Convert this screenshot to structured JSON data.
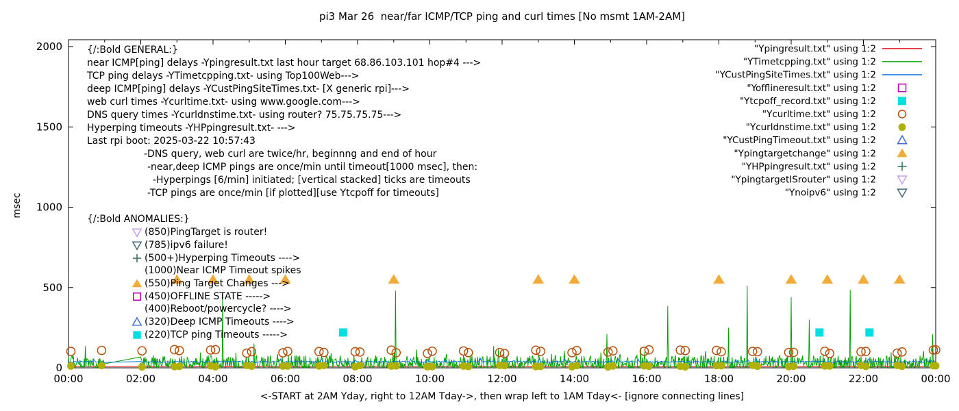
{
  "title": "pi3 Mar 26  near/far ICMP/TCP ping and curl times [No msmt 1AM-2AM]",
  "ylabel": "msec",
  "xlabel": "<-START at 2AM Yday, right to 12AM Tday->, then wrap left to 1AM Tday<- [ignore connecting lines]",
  "colors": {
    "red": "#e30000",
    "green": "#00a000",
    "blue": "#0072dd",
    "magenta": "#c000c0",
    "cyan": "#00e0e0",
    "dark_orange": "#b5500d",
    "olive": "#b0b000",
    "blue_triangle": "#3e6dd8",
    "orange_triangle": "#f3ab38",
    "dark_green": "#2d6e4f",
    "violet": "#c79fe8",
    "dark_teal": "#47697a",
    "frame": "#000000"
  },
  "legend": [
    {
      "label": "\"Ypingresult.txt\" using 1:2",
      "marker": "line",
      "color": "#e30000"
    },
    {
      "label": "\"YTimetcpping.txt\" using 1:2",
      "marker": "line",
      "color": "#00a000"
    },
    {
      "label": "\"YCustPingSiteTimes.txt\" using 1:2",
      "marker": "line",
      "color": "#0072dd"
    },
    {
      "label": "\"Yofflineresult.txt\" using 1:2",
      "marker": "square-open",
      "color": "#c000c0"
    },
    {
      "label": "\"Ytcpoff_record.txt\" using 1:2",
      "marker": "square",
      "color": "#00e0e0"
    },
    {
      "label": "\"Ycurltime.txt\" using 1:2",
      "marker": "circle-open",
      "color": "#b5500d"
    },
    {
      "label": "\"Ycurldnstime.txt\" using 1:2",
      "marker": "circle",
      "color": "#b0b000"
    },
    {
      "label": "\"YCustPingTimeout.txt\" using 1:2",
      "marker": "triangle-open",
      "color": "#3e6dd8"
    },
    {
      "label": "\"Ypingtargetchange\" using 1:2",
      "marker": "triangle",
      "color": "#f3ab38"
    },
    {
      "label": "\"YHPpingresult.txt\" using 1:2",
      "marker": "plus",
      "color": "#2d6e4f"
    },
    {
      "label": "\"YpingtargetISrouter\" using 1:2",
      "marker": "triangle-down-open",
      "color": "#c79fe8"
    },
    {
      "label": "\"Ynoipv6\" using 1:2",
      "marker": "triangle-down-open",
      "color": "#47697a"
    }
  ],
  "annotations": {
    "general": [
      {
        "text": "{/:Bold GENERAL:}",
        "indent": 0
      },
      {
        "text": "near ICMP[ping] delays -Ypingresult.txt last hour target 68.86.103.101 hop#4 --->",
        "indent": 0
      },
      {
        "text": "TCP ping delays -YTimetcpping.txt- using Top100Web--->",
        "indent": 0
      },
      {
        "text": "deep ICMP[ping] delays -YCustPingSiteTimes.txt- [X generic rpi]--->",
        "indent": 0
      },
      {
        "text": "web curl times -Ycurltime.txt- using www.google.com--->",
        "indent": 0
      },
      {
        "text": "DNS query times -Ycurldnstime.txt- using router? 75.75.75.75--->",
        "indent": 0
      },
      {
        "text": "Hyperping timeouts -YHPpingresult.txt- --->",
        "indent": 0
      },
      {
        "text": "Last rpi boot: 2025-03-22 10:57:43",
        "indent": 0
      },
      {
        "text": "-DNS query, web curl are twice/hr, beginnng and end of hour",
        "indent": 83
      },
      {
        "text": "-near,deep ICMP pings are once/min until timeout[1000 msec], then:",
        "indent": 88
      },
      {
        "text": "-Hyperpings [6/min] initiated; [vertical stacked] ticks are timeouts",
        "indent": 96
      },
      {
        "text": "-TCP pings are once/min [if plotted][use Ytcpoff for timeouts]",
        "indent": 88
      }
    ],
    "anomalies_header": "{/:Bold ANOMALIES:}",
    "anomalies": [
      {
        "marker": "triangle-down-open",
        "color": "#c79fe8",
        "text": "(850)PingTarget is router!"
      },
      {
        "marker": "triangle-down-open",
        "color": "#47697a",
        "text": "(785)ipv6 failure!"
      },
      {
        "marker": "plus",
        "color": "#2d6e4f",
        "text": "(500+)Hyperping Timeouts ---->"
      },
      {
        "marker": null,
        "color": null,
        "text": "(1000)Near ICMP Timeout spikes"
      },
      {
        "marker": "triangle",
        "color": "#f3ab38",
        "text": "(550)Ping Target Changes --->"
      },
      {
        "marker": "square-open",
        "color": "#c000c0",
        "text": "(450)OFFLINE STATE ----->"
      },
      {
        "marker": null,
        "color": null,
        "text": "(400)Reboot/powercycle? ---->"
      },
      {
        "marker": "triangle-open",
        "color": "#3e6dd8",
        "text": "(320)Deep ICMP Timeouts ---->"
      },
      {
        "marker": "square",
        "color": "#00e0e0",
        "text": "(220)TCP ping Timeouts ----->"
      }
    ]
  },
  "chart_data": {
    "type": "line",
    "title": "pi3 Mar 26  near/far ICMP/TCP ping and curl times [No msmt 1AM-2AM]",
    "xlabel": "<-START at 2AM Yday, right to 12AM Tday->, then wrap left to 1AM Tday<- [ignore connecting lines]",
    "ylabel": "msec",
    "ylim": [
      0,
      2000
    ],
    "y_ticks": [
      0,
      500,
      1000,
      1500,
      2000
    ],
    "x_tick_labels": [
      "00:00",
      "02:00",
      "04:00",
      "06:00",
      "08:00",
      "10:00",
      "12:00",
      "14:00",
      "16:00",
      "18:00",
      "20:00",
      "22:00",
      "00:00"
    ],
    "x_hours_range": [
      0,
      24
    ],
    "grid": false,
    "legend_position": "top-right-inside",
    "no_measurement_window": [
      "01:00",
      "02:00"
    ],
    "series": [
      {
        "name": "Ypingresult.txt",
        "style": "line",
        "color": "#e30000",
        "description": "near ICMP ping delay, flat ~5-10 msec all day",
        "baseline_msec": 6,
        "noise_amp": 4
      },
      {
        "name": "YTimetcpping.txt",
        "style": "line",
        "color": "#00a000",
        "description": "TCP ping delay grass 0-80 msec once/min, with timeout spikes",
        "grass_max": 78,
        "spikes": [
          [
            "00:28",
            135
          ],
          [
            "04:16",
            460
          ],
          [
            "05:08",
            150
          ],
          [
            "09:03",
            480
          ],
          [
            "11:46",
            135
          ],
          [
            "14:54",
            210
          ],
          [
            "15:50",
            125
          ],
          [
            "16:35",
            385
          ],
          [
            "18:16",
            250
          ],
          [
            "18:47",
            510
          ],
          [
            "20:00",
            440
          ],
          [
            "20:30",
            300
          ],
          [
            "21:38",
            485
          ],
          [
            "23:55",
            210
          ]
        ]
      },
      {
        "name": "YCustPingSiteTimes.txt",
        "style": "line",
        "color": "#0072dd",
        "description": "deep ICMP ping ~33-45 msec",
        "baseline_msec": 33,
        "noise_amp": 9,
        "bump_chance": 0.04,
        "bump_amp": 20
      },
      {
        "name": "Yofflineresult.txt",
        "style": "points",
        "marker": "square-open",
        "color": "#c000c0",
        "points": []
      },
      {
        "name": "Ytcpoff_record.txt",
        "style": "points",
        "marker": "square",
        "color": "#00e0e0",
        "points": [
          [
            "07:36",
            220
          ],
          [
            "20:47",
            220
          ],
          [
            "22:10",
            220
          ]
        ]
      },
      {
        "name": "Ycurltime.txt",
        "style": "points",
        "marker": "circle-open",
        "color": "#b5500d",
        "description": "web curl times twice/hr",
        "value_msec_range": [
          88,
          114
        ],
        "times": [
          "00:04",
          "00:55",
          "02:02",
          "02:56",
          "03:04",
          "03:56",
          "04:04",
          "04:56",
          "05:04",
          "05:56",
          "06:04",
          "06:56",
          "07:04",
          "07:56",
          "08:04",
          "08:56",
          "09:04",
          "09:56",
          "10:04",
          "10:56",
          "11:04",
          "11:56",
          "12:04",
          "12:56",
          "13:04",
          "13:56",
          "14:04",
          "14:56",
          "15:04",
          "15:56",
          "16:04",
          "16:56",
          "17:04",
          "17:56",
          "18:04",
          "18:56",
          "19:04",
          "19:56",
          "20:04",
          "20:56",
          "21:04",
          "21:56",
          "22:04",
          "22:56",
          "23:04",
          "23:56",
          "24:00"
        ]
      },
      {
        "name": "Ycurldnstime.txt",
        "style": "points",
        "marker": "circle",
        "color": "#b0b000",
        "description": "DNS query times twice/hr",
        "value_msec_range": [
          6,
          16
        ],
        "times": [
          "00:04",
          "00:55",
          "02:02",
          "02:56",
          "03:04",
          "03:56",
          "04:04",
          "04:56",
          "05:04",
          "05:56",
          "06:04",
          "06:56",
          "07:04",
          "07:56",
          "08:04",
          "08:56",
          "09:04",
          "09:56",
          "10:04",
          "10:56",
          "11:04",
          "11:56",
          "12:04",
          "12:56",
          "13:04",
          "13:56",
          "14:04",
          "14:56",
          "15:04",
          "15:56",
          "16:04",
          "16:56",
          "17:04",
          "17:56",
          "18:04",
          "18:56",
          "19:04",
          "19:56",
          "20:04",
          "20:56",
          "21:04",
          "21:56",
          "22:04",
          "22:56",
          "23:04",
          "23:56",
          "24:00"
        ]
      },
      {
        "name": "YCustPingTimeout.txt",
        "style": "points",
        "marker": "triangle-open",
        "color": "#3e6dd8",
        "points": []
      },
      {
        "name": "Ypingtargetchange",
        "style": "points",
        "marker": "triangle",
        "color": "#f3ab38",
        "value_msec": 550,
        "times": [
          "03:00",
          "04:00",
          "05:00",
          "06:00",
          "09:00",
          "13:00",
          "14:00",
          "18:00",
          "20:00",
          "21:00",
          "22:00",
          "23:00"
        ]
      },
      {
        "name": "YHPpingresult.txt",
        "style": "points",
        "marker": "plus",
        "color": "#2d6e4f",
        "points": []
      },
      {
        "name": "YpingtargetISrouter",
        "style": "points",
        "marker": "triangle-down-open",
        "color": "#c79fe8",
        "points": []
      },
      {
        "name": "Ynoipv6",
        "style": "points",
        "marker": "triangle-down-open",
        "color": "#47697a",
        "points": []
      }
    ]
  }
}
